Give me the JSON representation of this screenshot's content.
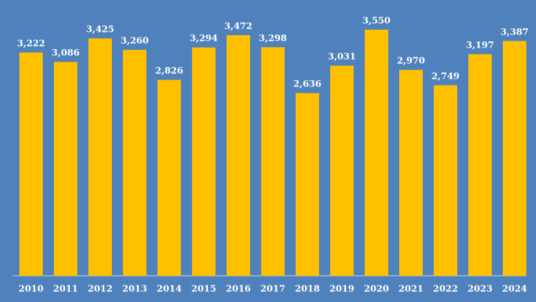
{
  "chart_data": {
    "type": "bar",
    "categories": [
      "2010",
      "2011",
      "2012",
      "2013",
      "2014",
      "2015",
      "2016",
      "2017",
      "2018",
      "2019",
      "2020",
      "2021",
      "2022",
      "2023",
      "2024"
    ],
    "values": [
      3222,
      3086,
      3425,
      3260,
      2826,
      3294,
      3472,
      3298,
      2636,
      3031,
      3550,
      2970,
      2749,
      3197,
      3387
    ],
    "value_labels": [
      "3,222",
      "3,086",
      "3,425",
      "3,260",
      "2,826",
      "3,294",
      "3,472",
      "3,298",
      "2,636",
      "3,031",
      "3,550",
      "2,970",
      "2,749",
      "3,197",
      "3,387"
    ],
    "ylim": [
      0,
      3550
    ],
    "grid": false,
    "legend": "none",
    "colors": {
      "background": "#4f81bd",
      "bar": "#ffc000",
      "text": "#ffffff",
      "axis": "#d9d9d9"
    }
  }
}
